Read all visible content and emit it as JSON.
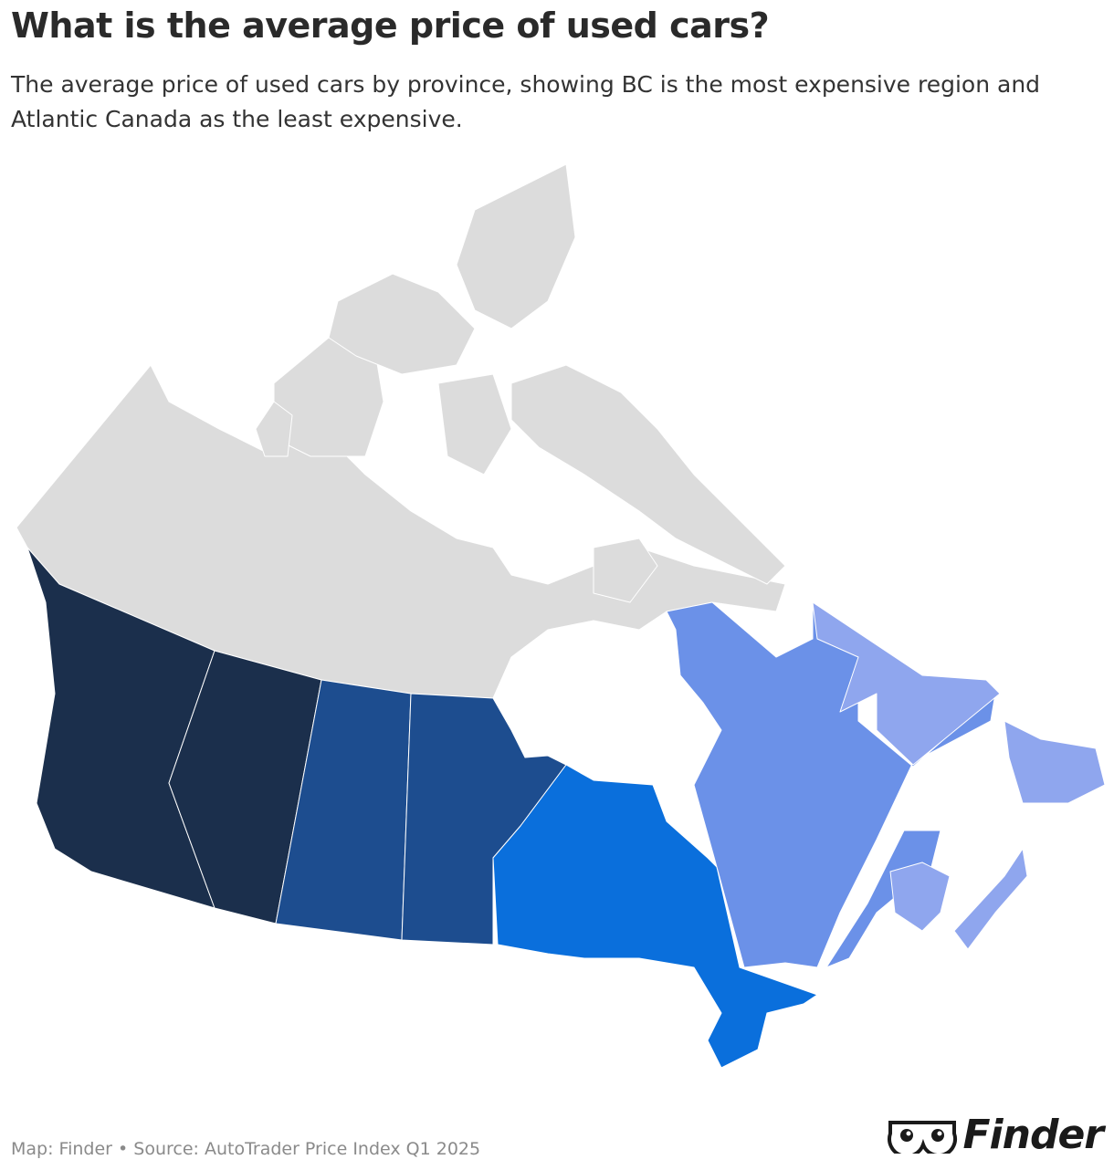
{
  "header": {
    "title": "What is the average price of used cars?",
    "subtitle": "The average price of used cars by province, showing BC is the most expensive region and Atlantic Canada as the least expensive."
  },
  "footer": {
    "source": "Map: Finder • Source: AutoTrader Price Index Q1 2025",
    "logo": "Finder"
  }
}
